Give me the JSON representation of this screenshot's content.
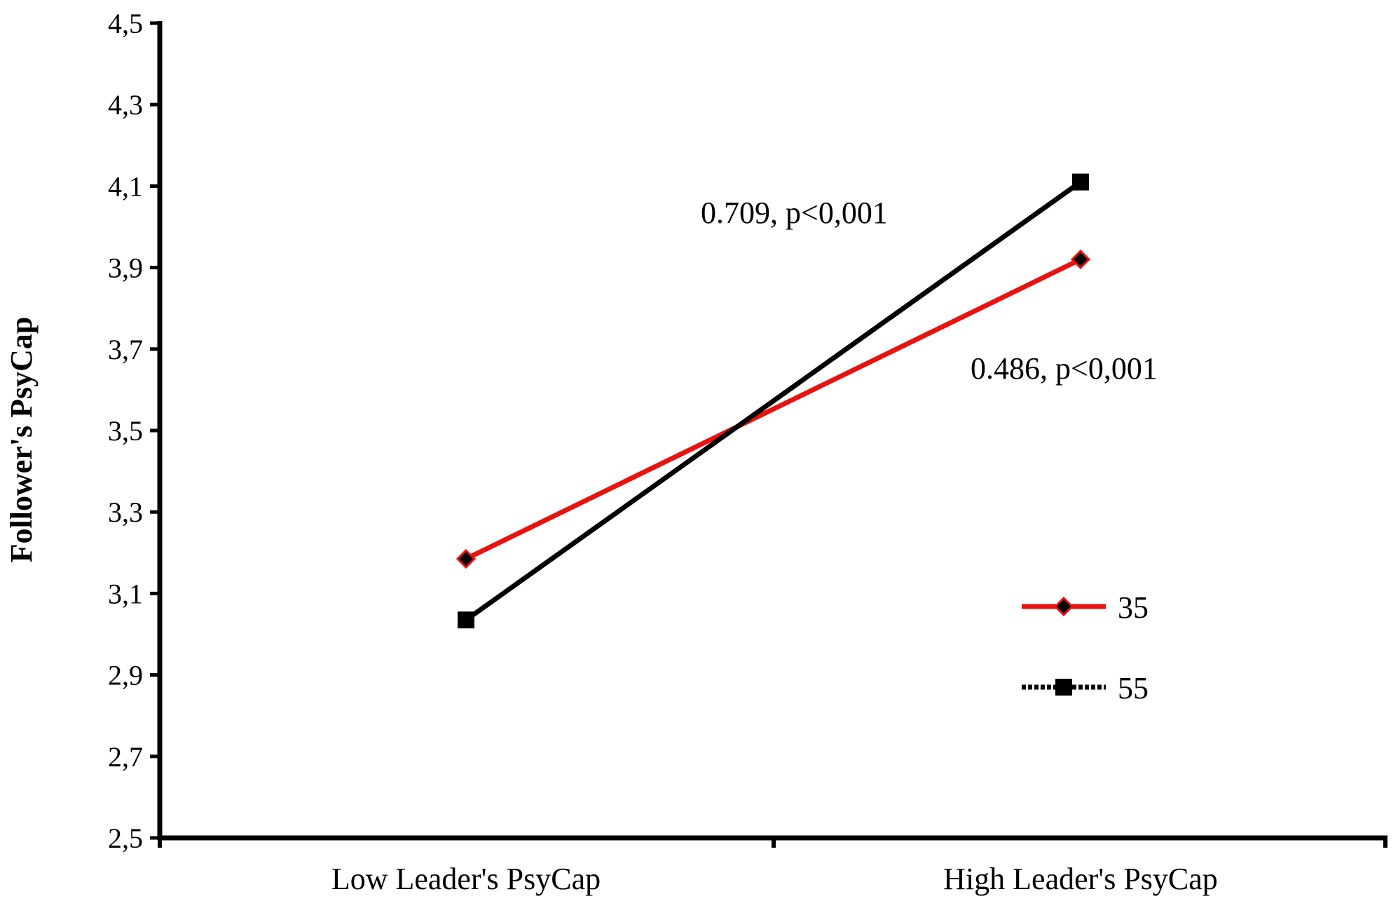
{
  "chart_data": {
    "type": "line",
    "title": "",
    "xlabel": "",
    "ylabel": "Follower's PsyCap",
    "categories": [
      "Low Leader's PsyCap",
      "High Leader's PsyCap"
    ],
    "ylim": [
      2.5,
      4.5
    ],
    "yticks": [
      "2,5",
      "2,7",
      "2,9",
      "3,1",
      "3,3",
      "3,5",
      "3,7",
      "3,9",
      "4,1",
      "4,3",
      "4,5"
    ],
    "ytick_values": [
      2.5,
      2.7,
      2.9,
      3.1,
      3.3,
      3.5,
      3.7,
      3.9,
      4.1,
      4.3,
      4.5
    ],
    "grid": false,
    "legend_position": "bottom-right",
    "series": [
      {
        "name": "35",
        "values": [
          3.185,
          3.92
        ],
        "color": "#e8130f",
        "marker": "diamond"
      },
      {
        "name": "55",
        "values": [
          3.035,
          4.11
        ],
        "color": "#000000",
        "marker": "square"
      }
    ],
    "annotations": [
      {
        "text": "0.709, p<0,001"
      },
      {
        "text": "0.486, p<0,001"
      }
    ]
  }
}
